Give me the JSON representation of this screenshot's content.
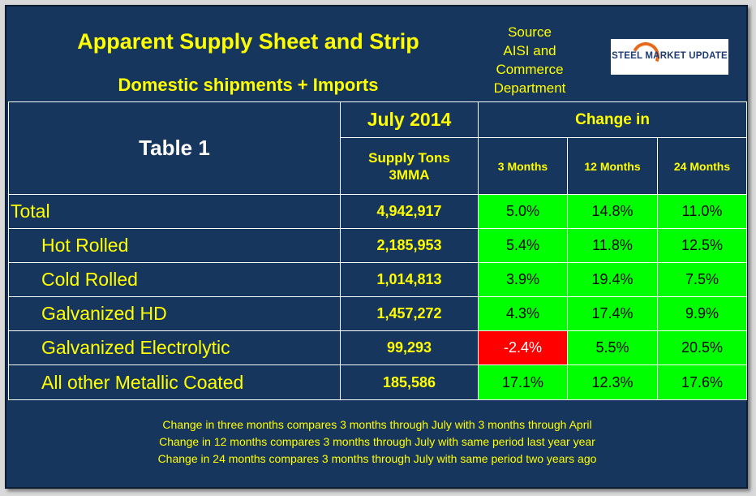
{
  "header": {
    "title": "Apparent Supply Sheet and Strip",
    "subtitle": "Domestic shipments + Imports",
    "source_lines": [
      "Source",
      "AISI and",
      "Commerce",
      "Department"
    ],
    "logo_text": "STEEL MARKET UPDATE"
  },
  "table": {
    "name": "Table 1",
    "month": "July 2014",
    "supply_label_1": "Supply Tons",
    "supply_label_2": "3MMA",
    "change_in": "Change in",
    "periods": [
      "3 Months",
      "12 Months",
      "24 Months"
    ],
    "rows": [
      {
        "label": "Total",
        "tons": "4,942,917",
        "m3": "5.0%",
        "m12": "14.8%",
        "m24": "11.0%"
      },
      {
        "label": "Hot Rolled",
        "tons": "2,185,953",
        "m3": "5.4%",
        "m12": "11.8%",
        "m24": "12.5%"
      },
      {
        "label": "Cold Rolled",
        "tons": "1,014,813",
        "m3": "3.9%",
        "m12": "19.4%",
        "m24": "7.5%"
      },
      {
        "label": "Galvanized HD",
        "tons": "1,457,272",
        "m3": "4.3%",
        "m12": "17.4%",
        "m24": "9.9%"
      },
      {
        "label": "Galvanized Electrolytic",
        "tons": "99,293",
        "m3": "-2.4%",
        "m12": "5.5%",
        "m24": "20.5%"
      },
      {
        "label": "All other Metallic Coated",
        "tons": "185,586",
        "m3": "17.1%",
        "m12": "12.3%",
        "m24": "17.6%"
      }
    ]
  },
  "notes": [
    "Change in three months compares 3 months through July with 3 months through April",
    "Change in 12 months compares 3 months through July with same period last year year",
    "Change in 24 months compares 3 months through July with same period two years ago"
  ],
  "colors": {
    "background": "#17365d",
    "text": "#ffff00",
    "positive": "#00ff00",
    "negative": "#ff0000"
  }
}
